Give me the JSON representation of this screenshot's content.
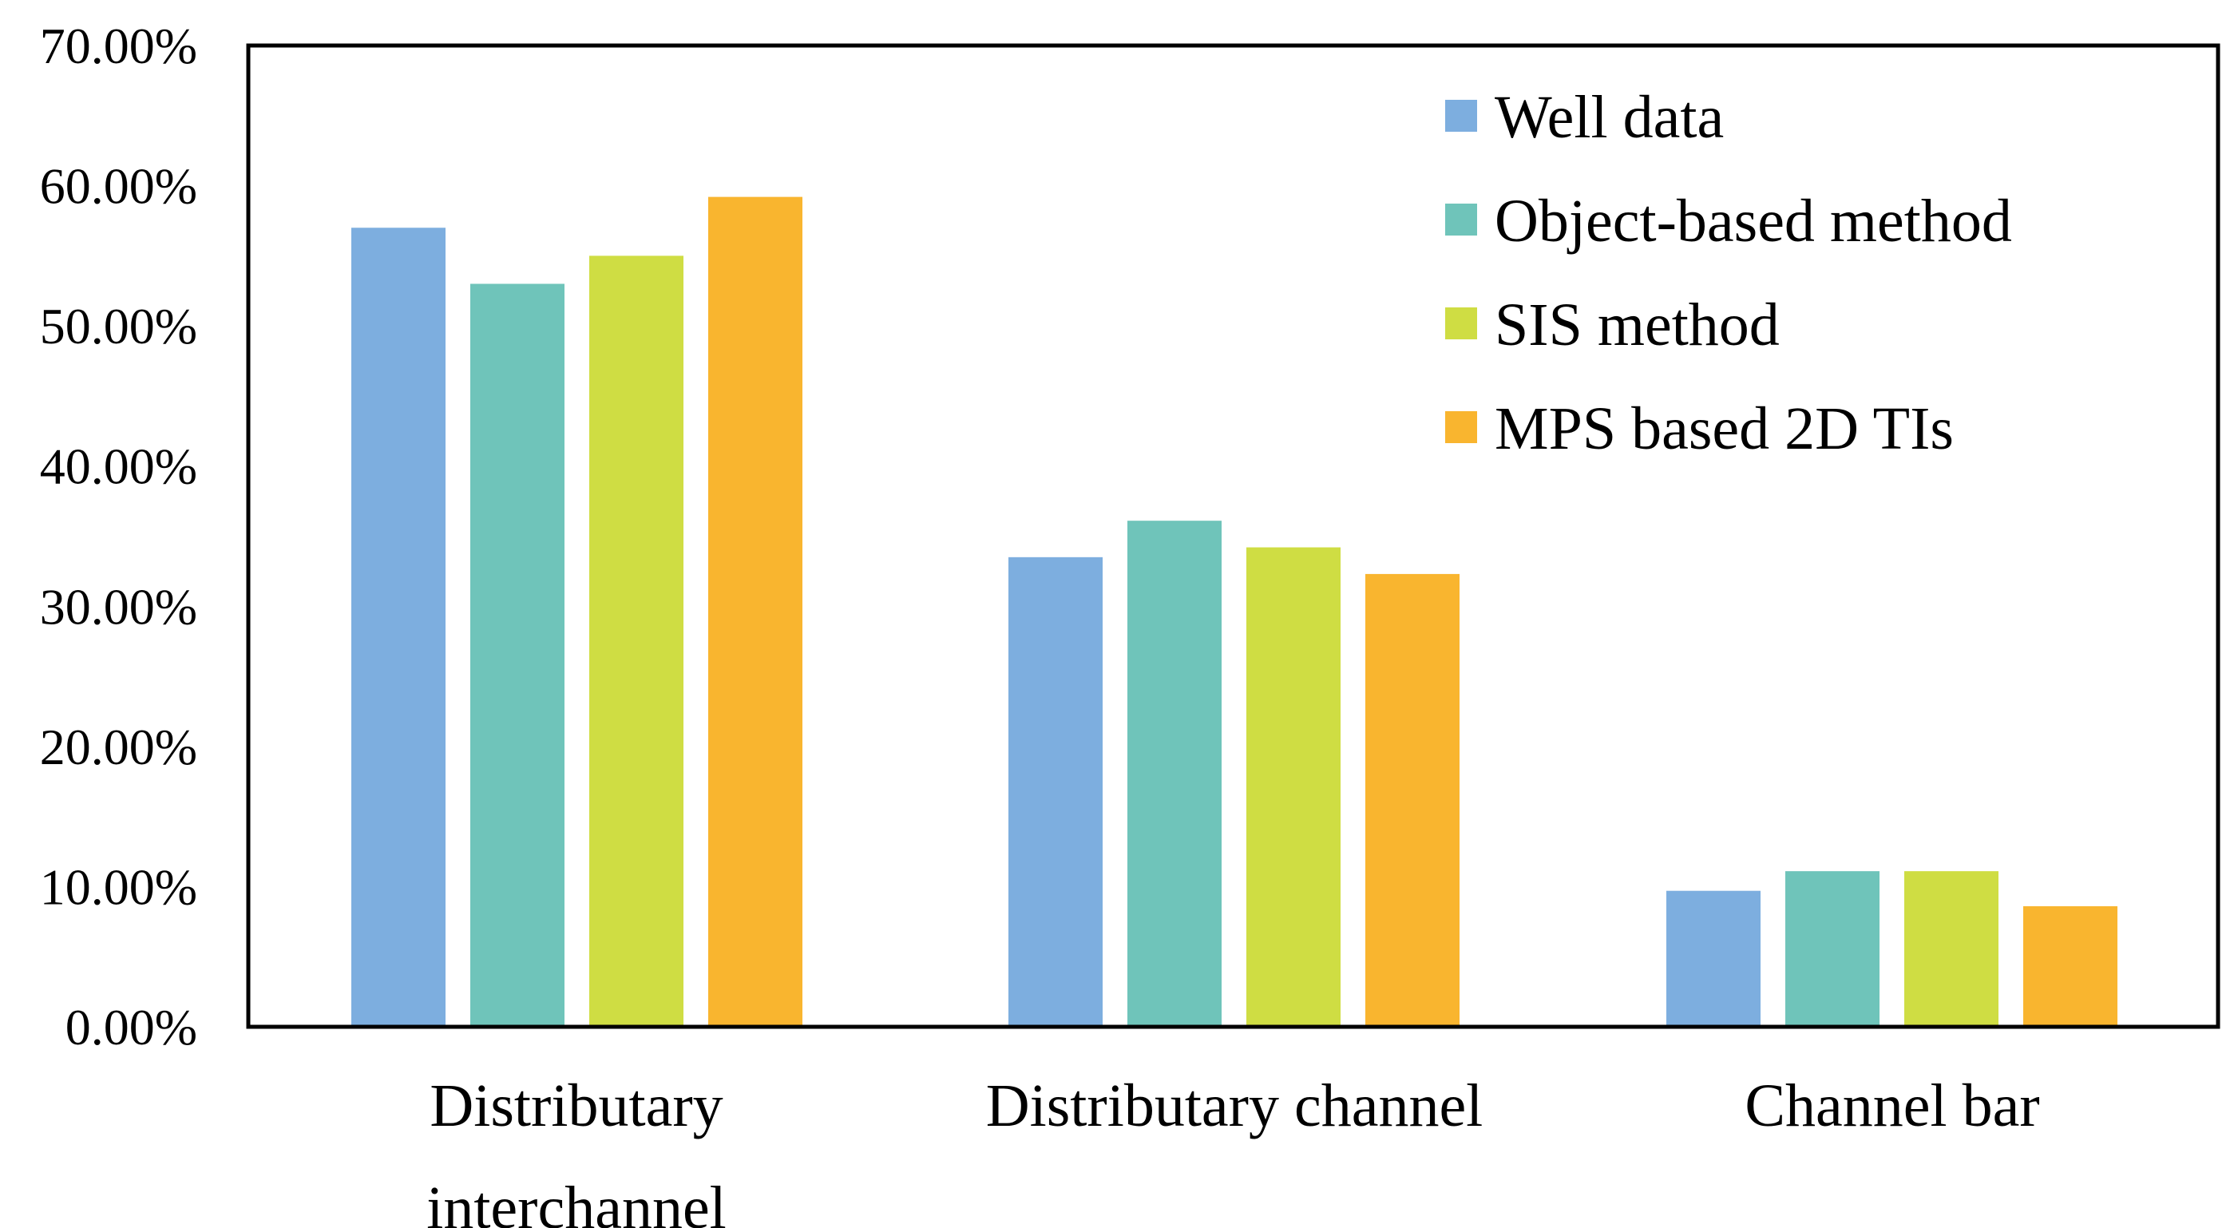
{
  "chart_data": {
    "type": "bar",
    "title": "",
    "xlabel": "",
    "ylabel": "",
    "ylim": [
      0,
      0.7
    ],
    "yticks": [
      {
        "value": 0.0,
        "label": "0.00%"
      },
      {
        "value": 0.1,
        "label": "10.00%"
      },
      {
        "value": 0.2,
        "label": "20.00%"
      },
      {
        "value": 0.3,
        "label": "30.00%"
      },
      {
        "value": 0.4,
        "label": "40.00%"
      },
      {
        "value": 0.5,
        "label": "50.00%"
      },
      {
        "value": 0.6,
        "label": "60.00%"
      },
      {
        "value": 0.7,
        "label": "70.00%"
      }
    ],
    "categories": [
      {
        "lines": [
          "Distributary",
          "interchannel"
        ]
      },
      {
        "lines": [
          "Distributary channel"
        ]
      },
      {
        "lines": [
          "Channel bar"
        ]
      }
    ],
    "series": [
      {
        "name": "Well data",
        "color": "#7DAEDF",
        "values": [
          0.57,
          0.335,
          0.097
        ]
      },
      {
        "name": "Object-based method",
        "color": "#6FC4BA",
        "values": [
          0.53,
          0.361,
          0.111
        ]
      },
      {
        "name": "SIS method",
        "color": "#CFDD43",
        "values": [
          0.55,
          0.342,
          0.111
        ]
      },
      {
        "name": "MPS based 2D TIs",
        "color": "#F9B52F",
        "values": [
          0.592,
          0.323,
          0.086
        ]
      }
    ],
    "grid": false,
    "legend": "top-right"
  }
}
